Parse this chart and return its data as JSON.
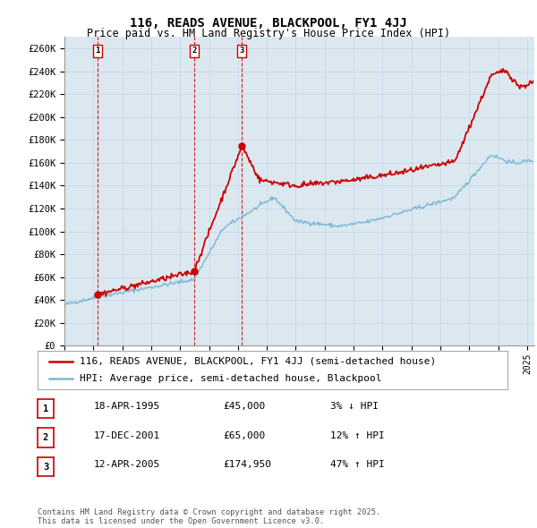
{
  "title": "116, READS AVENUE, BLACKPOOL, FY1 4JJ",
  "subtitle": "Price paid vs. HM Land Registry's House Price Index (HPI)",
  "ylabel_ticks": [
    "£0",
    "£20K",
    "£40K",
    "£60K",
    "£80K",
    "£100K",
    "£120K",
    "£140K",
    "£160K",
    "£180K",
    "£200K",
    "£220K",
    "£240K",
    "£260K"
  ],
  "ytick_values": [
    0,
    20000,
    40000,
    60000,
    80000,
    100000,
    120000,
    140000,
    160000,
    180000,
    200000,
    220000,
    240000,
    260000
  ],
  "ylim": [
    0,
    270000
  ],
  "xlim_start": 1993.0,
  "xlim_end": 2025.5,
  "sale_dates": [
    1995.3,
    2001.96,
    2005.28
  ],
  "sale_prices": [
    45000,
    65000,
    174950
  ],
  "sale_labels": [
    "1",
    "2",
    "3"
  ],
  "legend_line1": "116, READS AVENUE, BLACKPOOL, FY1 4JJ (semi-detached house)",
  "legend_line2": "HPI: Average price, semi-detached house, Blackpool",
  "table_rows": [
    [
      "1",
      "18-APR-1995",
      "£45,000",
      "3% ↓ HPI"
    ],
    [
      "2",
      "17-DEC-2001",
      "£65,000",
      "12% ↑ HPI"
    ],
    [
      "3",
      "12-APR-2005",
      "£174,950",
      "47% ↑ HPI"
    ]
  ],
  "footer": "Contains HM Land Registry data © Crown copyright and database right 2025.\nThis data is licensed under the Open Government Licence v3.0.",
  "hpi_color": "#7bb8d4",
  "sale_color": "#cc0000",
  "vline_color": "#cc0000",
  "grid_color": "#c8d8e8",
  "bg_color": "#ffffff",
  "plot_bg_color": "#dce8f0",
  "title_fontsize": 10,
  "subtitle_fontsize": 8.5,
  "tick_fontsize": 7.5,
  "legend_fontsize": 8
}
